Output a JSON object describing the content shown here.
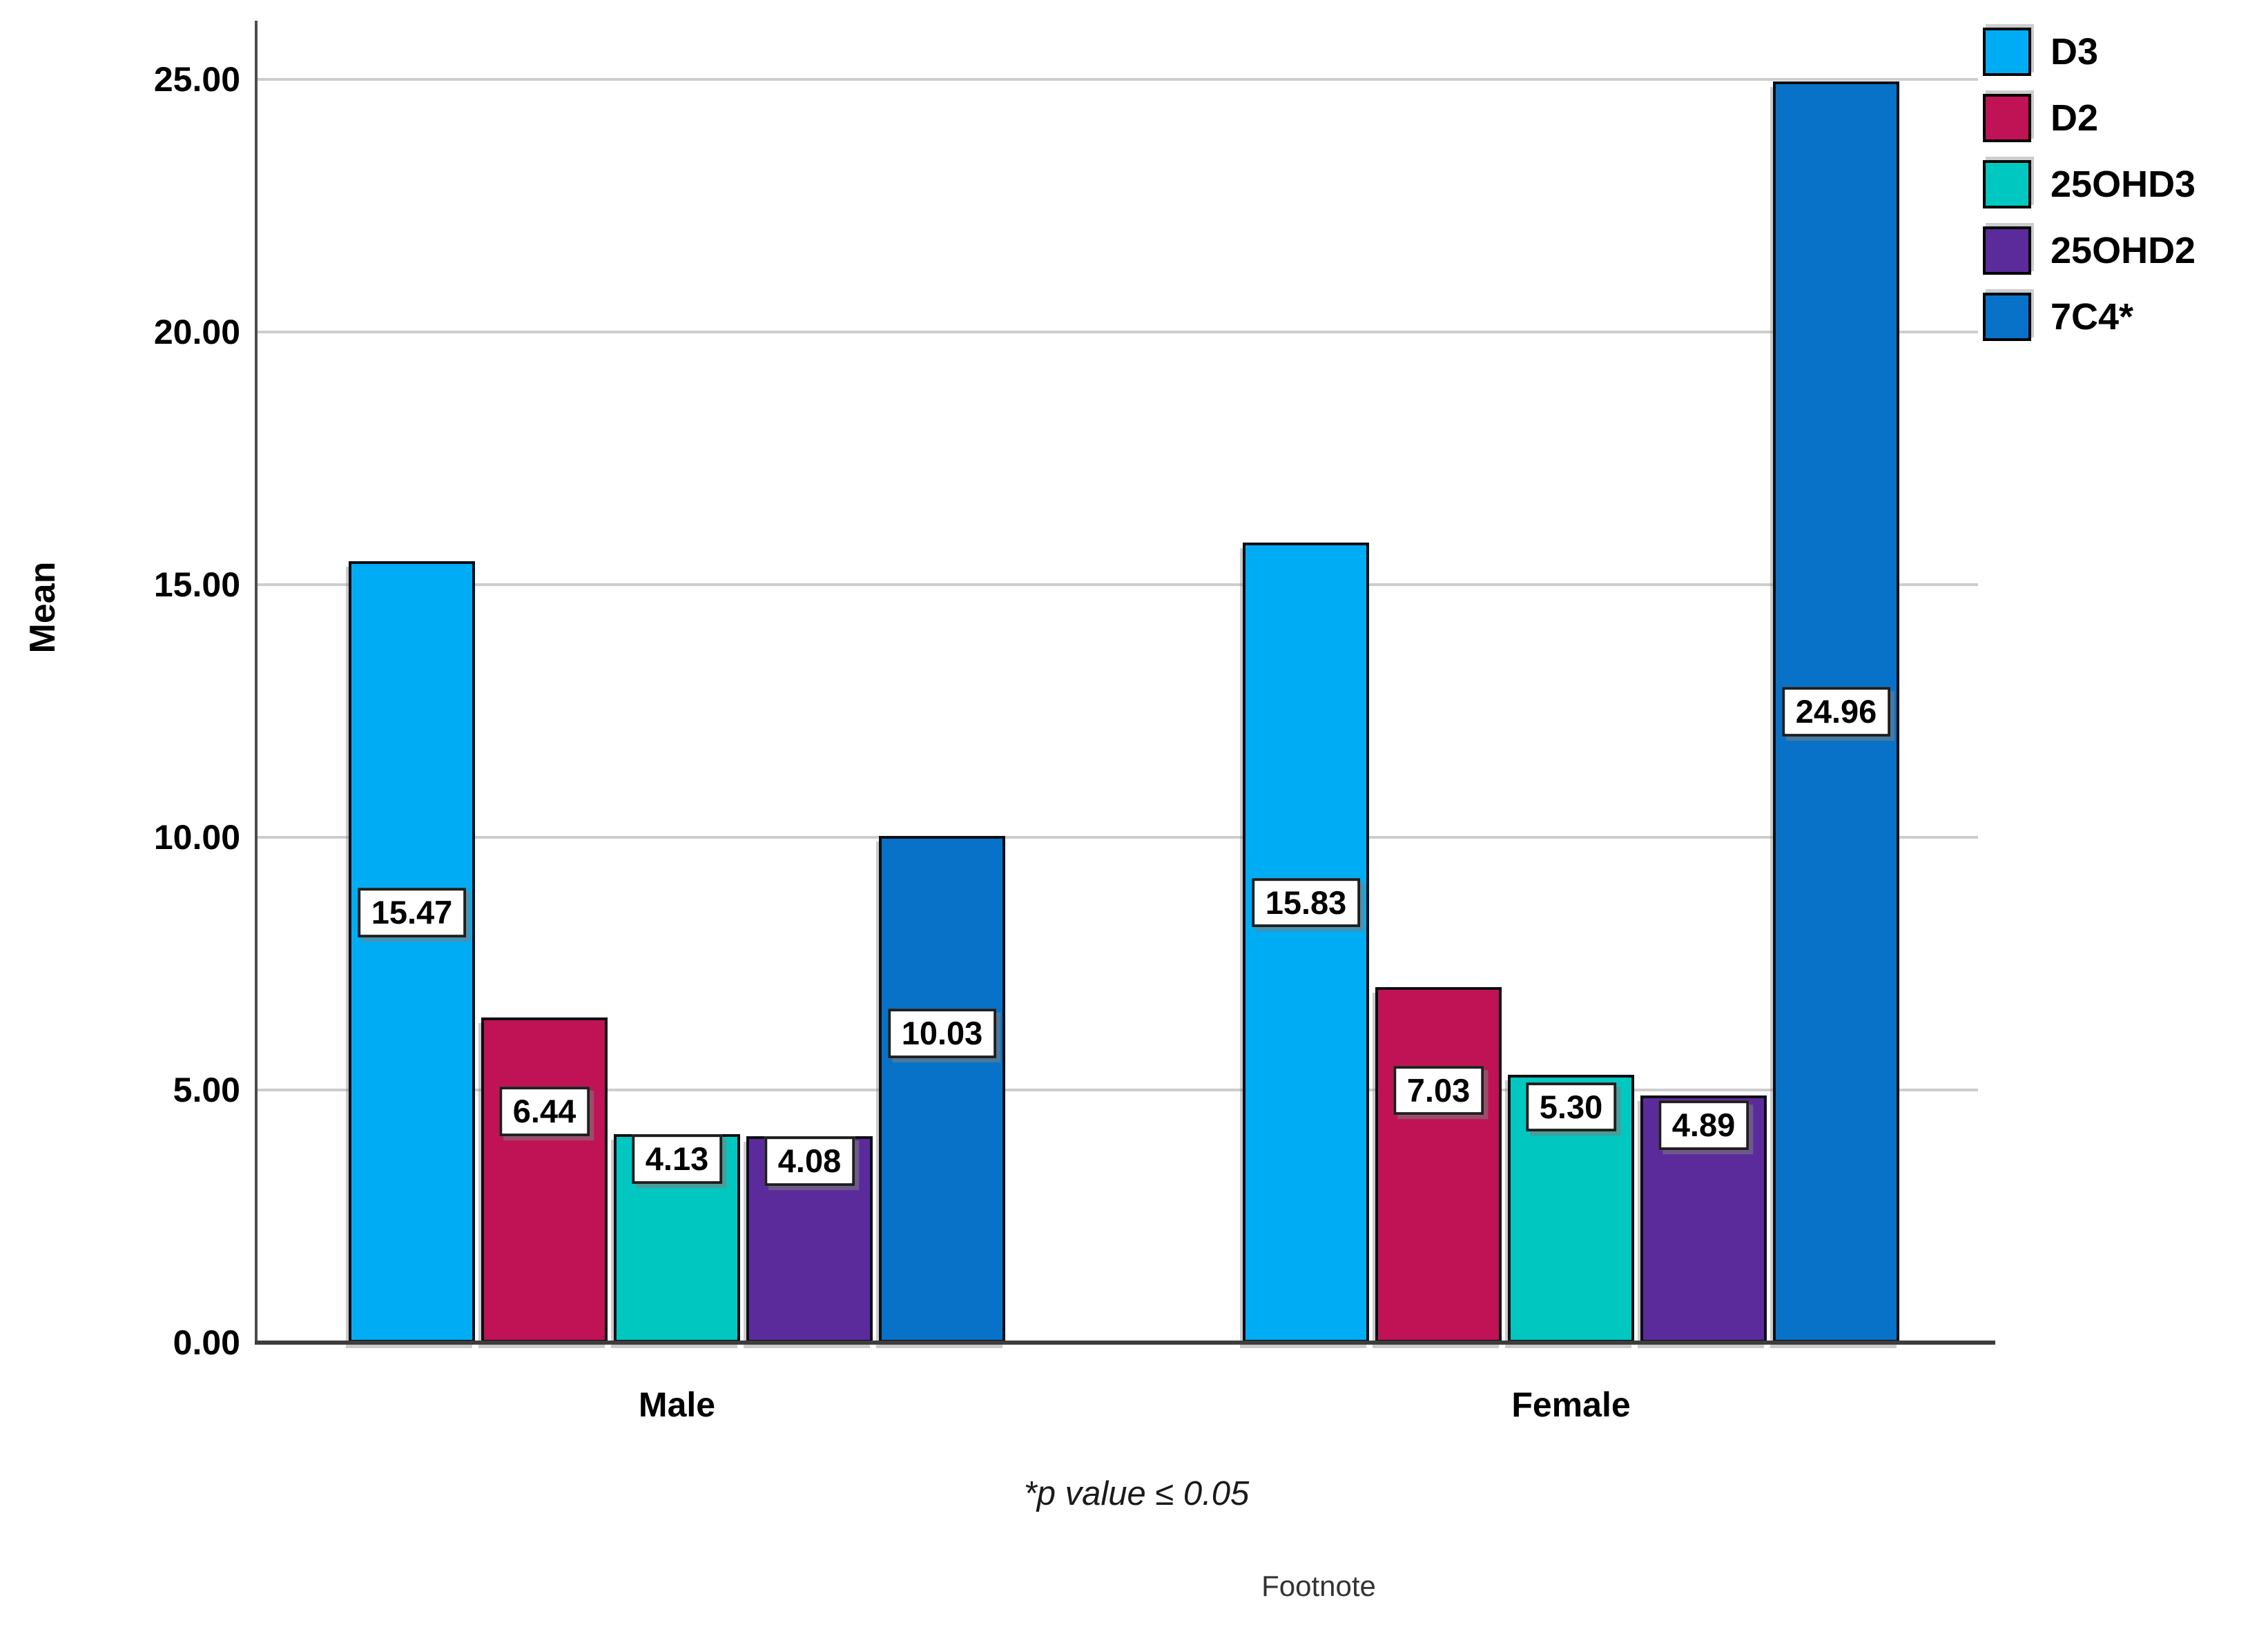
{
  "chart_data": {
    "type": "bar",
    "title": "",
    "ylabel": "Mean",
    "xlabel": "",
    "categories": [
      "Male",
      "Female"
    ],
    "series": [
      {
        "name": "D3",
        "color": "#00ACF4",
        "values": [
          15.47,
          15.83
        ],
        "labels": [
          "15.47",
          "15.83"
        ]
      },
      {
        "name": "D2",
        "color": "#BF1355",
        "values": [
          6.44,
          7.03
        ],
        "labels": [
          "6.44",
          "7.03"
        ]
      },
      {
        "name": "25OHD3",
        "color": "#00C8C0",
        "values": [
          4.13,
          5.3
        ],
        "labels": [
          "4.13",
          "5.30"
        ]
      },
      {
        "name": "25OHD2",
        "color": "#5B2B9B",
        "values": [
          4.08,
          4.89
        ],
        "labels": [
          "4.08",
          "4.89"
        ]
      },
      {
        "name": "7C4*",
        "color": "#0872C8",
        "values": [
          10.03,
          24.96
        ],
        "labels": [
          "10.03",
          "24.96"
        ]
      }
    ],
    "y_ticks": [
      {
        "value": 0,
        "label": "0.00"
      },
      {
        "value": 5,
        "label": "5.00"
      },
      {
        "value": 10,
        "label": "10.00"
      },
      {
        "value": 15,
        "label": "15.00"
      },
      {
        "value": 20,
        "label": "20.00"
      },
      {
        "value": 25,
        "label": "25.00"
      }
    ],
    "ylim": [
      0,
      26.2
    ],
    "grid": "horizontal",
    "legend_position": "top-right",
    "footnote": "*p value ≤ 0.05",
    "footnote_caption": "Footnote"
  }
}
